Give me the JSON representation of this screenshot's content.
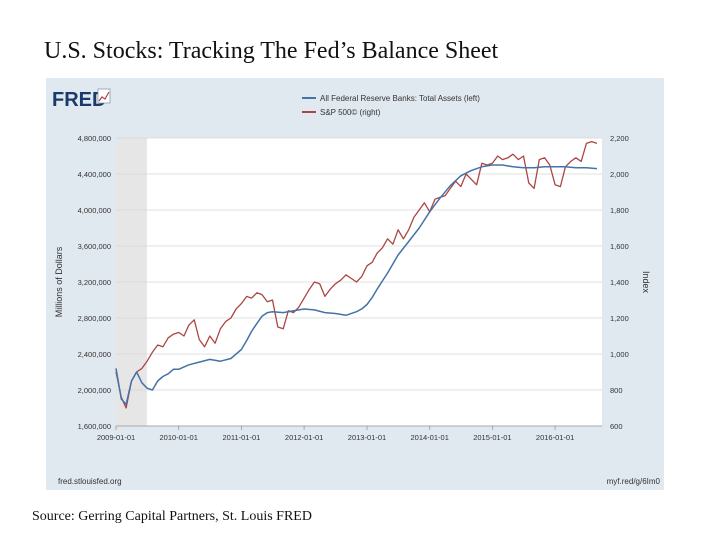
{
  "slide": {
    "title": "U.S. Stocks: Tracking The Fed’s Balance Sheet",
    "source": "Source: Gerring Capital Partners, St. Louis FRED"
  },
  "fred": {
    "logo_text": "FRED",
    "footer_left": "fred.stlouisfed.org",
    "footer_right": "myf.red/g/6Im0"
  },
  "colors": {
    "assets": "#4572a7",
    "sp500": "#aa4643",
    "recession_shade": "#e6e6e6",
    "frame_bg": "#e1e9f0"
  },
  "chart_data": {
    "type": "line",
    "title": "",
    "xlabel": "",
    "ylabel_left": "Millions of Dollars",
    "ylabel_right": "Index",
    "x_ticks": [
      "2009-01-01",
      "2010-01-01",
      "2011-01-01",
      "2012-01-01",
      "2013-01-01",
      "2014-01-01",
      "2015-01-01",
      "2016-01-01"
    ],
    "xlim": [
      "2009-01-01",
      "2016-09-30"
    ],
    "y_left_ticks": [
      "1,600,000",
      "2,000,000",
      "2,400,000",
      "2,800,000",
      "3,200,000",
      "3,600,000",
      "4,000,000",
      "4,400,000",
      "4,800,000"
    ],
    "ylim_left": [
      1600000,
      4800000
    ],
    "y_right_ticks": [
      "600",
      "800",
      "1,000",
      "1,200",
      "1,400",
      "1,600",
      "1,800",
      "2,000",
      "2,200"
    ],
    "ylim_right": [
      600,
      2200
    ],
    "grid": true,
    "legend_position": "top-center",
    "recession_shading": {
      "start": "2009-01-01",
      "end": "2009-06-30"
    },
    "series": [
      {
        "name": "All Federal Reserve Banks: Total Assets (left)",
        "axis": "left",
        "x": [
          "2009-01-01",
          "2009-02-01",
          "2009-03-01",
          "2009-04-01",
          "2009-05-01",
          "2009-06-01",
          "2009-07-01",
          "2009-08-01",
          "2009-09-01",
          "2009-10-01",
          "2009-11-01",
          "2009-12-01",
          "2010-01-01",
          "2010-03-01",
          "2010-05-01",
          "2010-07-01",
          "2010-09-01",
          "2010-11-01",
          "2011-01-01",
          "2011-02-01",
          "2011-03-01",
          "2011-04-01",
          "2011-05-01",
          "2011-06-01",
          "2011-07-01",
          "2011-09-01",
          "2011-11-01",
          "2012-01-01",
          "2012-03-01",
          "2012-05-01",
          "2012-07-01",
          "2012-09-01",
          "2012-11-01",
          "2012-12-01",
          "2013-01-01",
          "2013-02-01",
          "2013-03-01",
          "2013-05-01",
          "2013-07-01",
          "2013-09-01",
          "2013-11-01",
          "2014-01-01",
          "2014-03-01",
          "2014-05-01",
          "2014-07-01",
          "2014-09-01",
          "2014-11-01",
          "2015-01-01",
          "2015-03-01",
          "2015-05-01",
          "2015-07-01",
          "2015-09-01",
          "2015-11-01",
          "2016-01-01",
          "2016-03-01",
          "2016-05-01",
          "2016-07-01",
          "2016-09-01"
        ],
        "values": [
          2240000,
          1900000,
          1840000,
          2100000,
          2200000,
          2080000,
          2020000,
          2000000,
          2100000,
          2150000,
          2180000,
          2230000,
          2230000,
          2280000,
          2310000,
          2340000,
          2320000,
          2350000,
          2450000,
          2550000,
          2650000,
          2740000,
          2820000,
          2860000,
          2870000,
          2860000,
          2880000,
          2900000,
          2890000,
          2860000,
          2850000,
          2830000,
          2870000,
          2900000,
          2950000,
          3030000,
          3120000,
          3300000,
          3500000,
          3650000,
          3800000,
          3980000,
          4130000,
          4270000,
          4380000,
          4440000,
          4480000,
          4500000,
          4500000,
          4480000,
          4470000,
          4470000,
          4480000,
          4480000,
          4480000,
          4470000,
          4470000,
          4460000
        ]
      },
      {
        "name": "S&P 500© (right)",
        "axis": "right",
        "x": [
          "2009-01-01",
          "2009-02-01",
          "2009-03-01",
          "2009-04-01",
          "2009-05-01",
          "2009-06-01",
          "2009-07-01",
          "2009-08-01",
          "2009-09-01",
          "2009-10-01",
          "2009-11-01",
          "2009-12-01",
          "2010-01-01",
          "2010-02-01",
          "2010-03-01",
          "2010-04-01",
          "2010-05-01",
          "2010-06-01",
          "2010-07-01",
          "2010-08-01",
          "2010-09-01",
          "2010-10-01",
          "2010-11-01",
          "2010-12-01",
          "2011-01-01",
          "2011-02-01",
          "2011-03-01",
          "2011-04-01",
          "2011-05-01",
          "2011-06-01",
          "2011-07-01",
          "2011-08-01",
          "2011-09-01",
          "2011-10-01",
          "2011-11-01",
          "2011-12-01",
          "2012-01-01",
          "2012-02-01",
          "2012-03-01",
          "2012-04-01",
          "2012-05-01",
          "2012-06-01",
          "2012-07-01",
          "2012-08-01",
          "2012-09-01",
          "2012-10-01",
          "2012-11-01",
          "2012-12-01",
          "2013-01-01",
          "2013-02-01",
          "2013-03-01",
          "2013-04-01",
          "2013-05-01",
          "2013-06-01",
          "2013-07-01",
          "2013-08-01",
          "2013-09-01",
          "2013-10-01",
          "2013-11-01",
          "2013-12-01",
          "2014-01-01",
          "2014-02-01",
          "2014-03-01",
          "2014-04-01",
          "2014-05-01",
          "2014-06-01",
          "2014-07-01",
          "2014-08-01",
          "2014-09-01",
          "2014-10-01",
          "2014-11-01",
          "2014-12-01",
          "2015-01-01",
          "2015-02-01",
          "2015-03-01",
          "2015-04-01",
          "2015-05-01",
          "2015-06-01",
          "2015-07-01",
          "2015-08-01",
          "2015-09-01",
          "2015-10-01",
          "2015-11-01",
          "2015-12-01",
          "2016-01-01",
          "2016-02-01",
          "2016-03-01",
          "2016-04-01",
          "2016-05-01",
          "2016-06-01",
          "2016-07-01",
          "2016-08-01",
          "2016-09-01"
        ],
        "values": [
          900,
          760,
          700,
          850,
          900,
          920,
          960,
          1010,
          1050,
          1040,
          1090,
          1110,
          1120,
          1100,
          1160,
          1190,
          1080,
          1040,
          1100,
          1060,
          1140,
          1180,
          1200,
          1250,
          1280,
          1320,
          1310,
          1340,
          1330,
          1290,
          1300,
          1150,
          1140,
          1240,
          1230,
          1260,
          1310,
          1360,
          1400,
          1390,
          1320,
          1360,
          1390,
          1410,
          1440,
          1420,
          1400,
          1430,
          1490,
          1510,
          1560,
          1590,
          1640,
          1610,
          1690,
          1640,
          1690,
          1760,
          1800,
          1840,
          1790,
          1860,
          1870,
          1880,
          1920,
          1960,
          1930,
          2000,
          1970,
          1940,
          2060,
          2050,
          2060,
          2100,
          2080,
          2090,
          2110,
          2080,
          2100,
          1950,
          1920,
          2080,
          2090,
          2050,
          1940,
          1930,
          2040,
          2070,
          2090,
          2070,
          2170,
          2180,
          2170
        ]
      }
    ]
  }
}
